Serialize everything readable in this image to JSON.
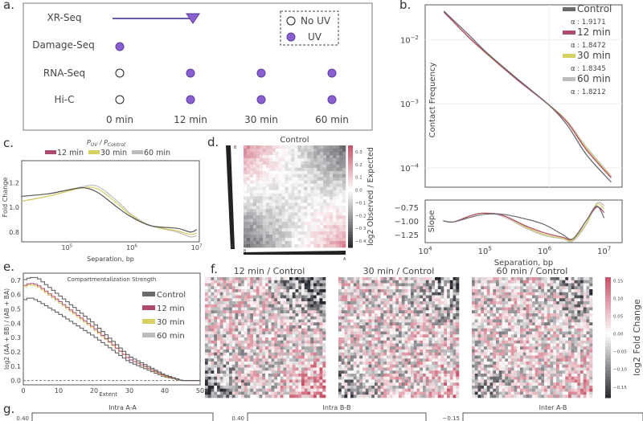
{
  "panels": {
    "a": {
      "letter": "a.",
      "rows": [
        "XR-Seq",
        "Damage-Seq",
        "RNA-Seq",
        "Hi-C"
      ],
      "timepoints": [
        "0 min",
        "12 min",
        "30 min",
        "60 min"
      ],
      "legend": {
        "no_uv": "No UV",
        "uv": "UV"
      },
      "uv_color": "#8a5fd0",
      "cells": {
        "XR-Seq": {
          "type": "range",
          "from": 0,
          "to": 1
        },
        "Damage-Seq": [
          "uv",
          null,
          null,
          null
        ],
        "RNA-Seq": [
          "no_uv",
          "uv",
          "uv",
          "uv"
        ],
        "Hi-C": [
          "no_uv",
          "uv",
          "uv",
          "uv"
        ]
      }
    },
    "b": {
      "letter": "b."
    },
    "c": {
      "letter": "c."
    },
    "d": {
      "letter": "d."
    },
    "e": {
      "letter": "e."
    },
    "f": {
      "letter": "f."
    },
    "g": {
      "letter": "g."
    }
  },
  "colors": {
    "Control": "#6b6b6b",
    "12 min": "#b04a6a",
    "30 min": "#d6cf62",
    "60 min": "#bdbdbd",
    "heat_pos": "#c75065",
    "heat_neg": "#2b2b2b"
  },
  "chart_data": [
    {
      "id": "b",
      "type": "line",
      "title": "",
      "xlabel": "Separation, bp",
      "ylabel": "Contact Frequency",
      "xscale": "log",
      "yscale": "log",
      "xlim": [
        10000,
        15000000
      ],
      "ylim": [
        5e-05,
        0.035
      ],
      "yticks": [
        "10^-2",
        "10^-3",
        "10^-4"
      ],
      "legend": [
        {
          "name": "Control",
          "alpha": "α : 1.9171"
        },
        {
          "name": "12 min",
          "alpha": "α : 1.8472"
        },
        {
          "name": "30 min",
          "alpha": "α : 1.8345"
        },
        {
          "name": "60 min",
          "alpha": "α : 1.8212"
        }
      ],
      "legend_position": "top-right",
      "series": [
        {
          "name": "Control",
          "x": [
            20000,
            50000,
            100000,
            300000,
            1000000,
            2000000,
            4000000,
            10000000
          ],
          "y": [
            0.028,
            0.012,
            0.0062,
            0.0025,
            0.00095,
            0.00045,
            0.00016,
            6e-05
          ]
        },
        {
          "name": "12 min",
          "x": [
            20000,
            50000,
            100000,
            300000,
            1000000,
            2000000,
            4000000,
            10000000
          ],
          "y": [
            0.027,
            0.011,
            0.006,
            0.0024,
            0.00095,
            0.0005,
            0.00019,
            7e-05
          ]
        },
        {
          "name": "30 min",
          "x": [
            20000,
            50000,
            100000,
            300000,
            1000000,
            2000000,
            4000000,
            10000000
          ],
          "y": [
            0.027,
            0.011,
            0.0059,
            0.0024,
            0.00096,
            0.00051,
            0.0002,
            7.2e-05
          ]
        },
        {
          "name": "60 min",
          "x": [
            20000,
            50000,
            100000,
            300000,
            1000000,
            2000000,
            4000000,
            10000000
          ],
          "y": [
            0.027,
            0.011,
            0.0059,
            0.0024,
            0.00096,
            0.00052,
            0.00021,
            7.5e-05
          ]
        }
      ]
    },
    {
      "id": "b-slope",
      "type": "line",
      "xlabel": "Separation, bp",
      "ylabel": "Slope",
      "xscale": "log",
      "xlim": [
        10000,
        20000000
      ],
      "ylim": [
        -1.4,
        -0.62
      ],
      "xticks": [
        "10^4",
        "10^5",
        "10^6",
        "10^7"
      ],
      "yticks": [
        -0.75,
        -1.0,
        -1.25
      ],
      "series": [
        {
          "name": "Control",
          "x": [
            20000,
            30000,
            60000,
            100000,
            200000,
            500000,
            1000000,
            2000000,
            3000000,
            5000000,
            7500000,
            10000000
          ],
          "y": [
            -1.0,
            -1.02,
            -0.93,
            -0.88,
            -0.88,
            -0.97,
            -1.07,
            -1.25,
            -1.33,
            -1.0,
            -0.73,
            -0.95
          ]
        },
        {
          "name": "12 min",
          "x": [
            20000,
            30000,
            60000,
            100000,
            200000,
            500000,
            1000000,
            2000000,
            3000000,
            5000000,
            7500000,
            10000000
          ],
          "y": [
            -1.0,
            -1.02,
            -0.9,
            -0.86,
            -0.9,
            -1.1,
            -1.22,
            -1.3,
            -1.33,
            -1.0,
            -0.75,
            -0.85
          ]
        },
        {
          "name": "30 min",
          "x": [
            20000,
            30000,
            60000,
            100000,
            200000,
            500000,
            1000000,
            2000000,
            3000000,
            5000000,
            7500000,
            10000000
          ],
          "y": [
            -1.0,
            -1.02,
            -0.9,
            -0.86,
            -0.9,
            -1.12,
            -1.25,
            -1.32,
            -1.35,
            -1.05,
            -0.7,
            -0.78
          ]
        },
        {
          "name": "60 min",
          "x": [
            20000,
            30000,
            60000,
            100000,
            200000,
            500000,
            1000000,
            2000000,
            3000000,
            5000000,
            7500000,
            10000000
          ],
          "y": [
            -1.0,
            -1.02,
            -0.9,
            -0.86,
            -0.92,
            -1.14,
            -1.27,
            -1.33,
            -1.37,
            -1.07,
            -0.68,
            -0.72
          ]
        }
      ]
    },
    {
      "id": "c",
      "type": "line",
      "title": "P_UV / P_Control",
      "xlabel": "Separation, bp",
      "ylabel": "Fold Change",
      "xscale": "log",
      "xlim": [
        20000,
        11000000
      ],
      "ylim": [
        0.72,
        1.38
      ],
      "xticks": [
        "10^5",
        "10^6",
        "10^7"
      ],
      "yticks": [
        0.8,
        1.0,
        1.2
      ],
      "legend_position": "top",
      "series": [
        {
          "name": "12 min",
          "x": [
            20000,
            50000,
            100000,
            180000,
            300000,
            600000,
            1000000,
            2000000,
            5000000,
            8000000,
            10000000
          ],
          "y": [
            1.09,
            1.11,
            1.14,
            1.16,
            1.12,
            1.0,
            0.92,
            0.85,
            0.83,
            0.8,
            0.82
          ]
        },
        {
          "name": "30 min",
          "x": [
            20000,
            50000,
            100000,
            180000,
            300000,
            600000,
            1000000,
            2000000,
            5000000,
            8000000,
            10000000
          ],
          "y": [
            1.05,
            1.09,
            1.13,
            1.16,
            1.15,
            1.03,
            0.93,
            0.85,
            0.81,
            0.78,
            0.79
          ]
        },
        {
          "name": "60 min",
          "x": [
            20000,
            50000,
            100000,
            180000,
            300000,
            600000,
            1000000,
            2000000,
            5000000,
            8000000,
            10000000
          ],
          "y": [
            1.05,
            1.09,
            1.13,
            1.17,
            1.17,
            1.05,
            0.94,
            0.85,
            0.8,
            0.76,
            0.77
          ]
        }
      ]
    },
    {
      "id": "d",
      "type": "heatmap",
      "title": "Control",
      "colorbar_label": "log2 Observed / Expected",
      "colorbar_ticks": [
        0.3,
        0.2,
        0.1,
        0.0,
        -0.1,
        -0.2,
        -0.3,
        -0.4
      ],
      "vmin": -0.45,
      "vmax": 0.35,
      "axis_labels": {
        "y_top": "B",
        "y_bottom": "A",
        "x_left": "B",
        "x_right": "A"
      },
      "pattern": "saddle: top-left and bottom-right positive, off-diagonal negative"
    },
    {
      "id": "e",
      "type": "line",
      "title": "Compartmentalization Strength",
      "xlabel": "Extent",
      "ylabel": "log2 (AA + BB) / (AB + BA)",
      "xlim": [
        0,
        50
      ],
      "ylim": [
        -0.03,
        0.75
      ],
      "xticks": [
        0,
        10,
        20,
        30,
        40,
        50
      ],
      "yticks": [
        0.0,
        0.1,
        0.2,
        0.3,
        0.4,
        0.5,
        0.6,
        0.7
      ],
      "legend": [
        "Control",
        "12 min",
        "30 min",
        "60 min"
      ],
      "legend_position": "right",
      "series": [
        {
          "name": "Control",
          "x": [
            0,
            2,
            4,
            10,
            20,
            30,
            40,
            45,
            50
          ],
          "y": [
            0.7,
            0.72,
            0.72,
            0.6,
            0.4,
            0.17,
            0.04,
            0.0,
            0.0
          ]
        },
        {
          "name": "12 min",
          "x": [
            0,
            2,
            4,
            10,
            20,
            30,
            40,
            45,
            50
          ],
          "y": [
            0.66,
            0.68,
            0.67,
            0.56,
            0.37,
            0.15,
            0.035,
            0.0,
            0.0
          ]
        },
        {
          "name": "30 min",
          "x": [
            0,
            2,
            4,
            10,
            20,
            30,
            40,
            45,
            50
          ],
          "y": [
            0.65,
            0.67,
            0.66,
            0.55,
            0.36,
            0.15,
            0.03,
            0.0,
            0.0
          ]
        },
        {
          "name": "60 min",
          "x": [
            0,
            2,
            4,
            10,
            20,
            30,
            40,
            45,
            50
          ],
          "y": [
            0.56,
            0.58,
            0.56,
            0.47,
            0.31,
            0.13,
            0.025,
            0.0,
            0.0
          ]
        }
      ],
      "baseline": 0.0
    },
    {
      "id": "f",
      "type": "heatmap",
      "panels": [
        "12 min / Control",
        "30 min / Control",
        "60 min / Control"
      ],
      "colorbar_label": "log2 Fold Change",
      "colorbar_ticks": [
        0.15,
        0.1,
        0.05,
        0.0,
        -0.05,
        -0.1,
        -0.15
      ],
      "vmin": -0.18,
      "vmax": 0.16,
      "pattern": "noisy; bottom-right (A-A) positive, bottom-left & top-right negative"
    },
    {
      "id": "g",
      "type": "line",
      "panels": [
        {
          "title": "Intra A-A",
          "ytick_top": "0.40"
        },
        {
          "title": "Intra B-B",
          "ytick_top": "0.40"
        },
        {
          "title": "Inter A-B",
          "ytick_top": "−0.15"
        }
      ]
    }
  ]
}
